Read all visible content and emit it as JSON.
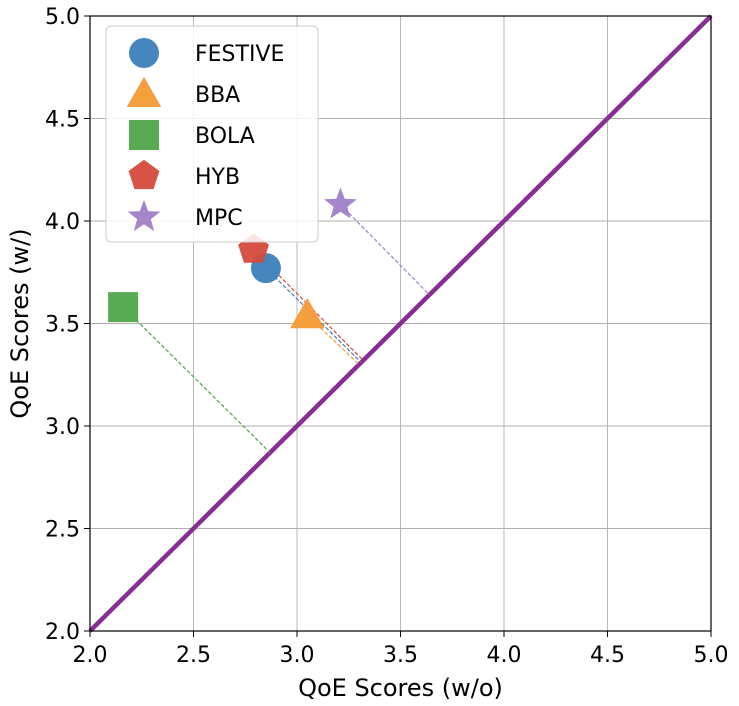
{
  "chart_data": {
    "type": "scatter",
    "title": "",
    "xlabel": "QoE Scores (w/o)",
    "ylabel": "QoE Scores (w/)",
    "xlim": [
      2.0,
      5.0
    ],
    "ylim": [
      2.0,
      5.0
    ],
    "xticks": [
      "2.0",
      "2.5",
      "3.0",
      "3.5",
      "4.0",
      "4.5",
      "5.0"
    ],
    "yticks": [
      "2.0",
      "2.5",
      "3.0",
      "3.5",
      "4.0",
      "4.5",
      "5.0"
    ],
    "grid": true,
    "legend_position": "top-left",
    "reference_line": {
      "from": [
        2.0,
        2.0
      ],
      "to": [
        5.0,
        5.0
      ],
      "color": "#882d96"
    },
    "series": [
      {
        "name": "FESTIVE",
        "marker": "circle",
        "color": "#3b7fba",
        "x": 2.85,
        "y": 3.77,
        "proj_x": 3.31,
        "proj_y": 3.31
      },
      {
        "name": "BBA",
        "marker": "triangle",
        "color": "#f59a35",
        "x": 3.05,
        "y": 3.54,
        "proj_x": 3.3,
        "proj_y": 3.3
      },
      {
        "name": "BOLA",
        "marker": "square",
        "color": "#4fa74a",
        "x": 2.16,
        "y": 3.58,
        "proj_x": 2.87,
        "proj_y": 2.87
      },
      {
        "name": "HYB",
        "marker": "pentagon",
        "color": "#d44a3c",
        "x": 2.79,
        "y": 3.86,
        "proj_x": 3.32,
        "proj_y": 3.32
      },
      {
        "name": "MPC",
        "marker": "star",
        "color": "#a07fc7",
        "x": 3.21,
        "y": 4.08,
        "proj_x": 3.64,
        "proj_y": 3.64
      }
    ]
  }
}
